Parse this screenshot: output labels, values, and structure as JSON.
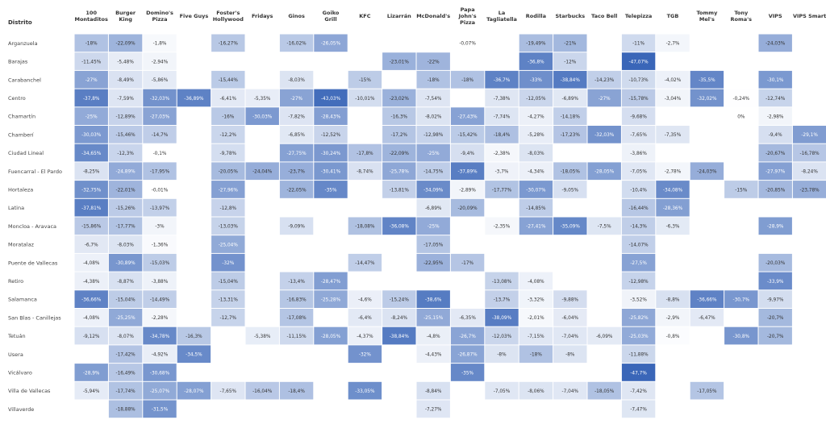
{
  "chart_data": {
    "type": "heatmap",
    "row_header": "Distrito",
    "columns": [
      "100 Montaditos",
      "Burger King",
      "Domino's Pizza",
      "Five Guys",
      "Foster's Hollywood",
      "Fridays",
      "Ginos",
      "Goiko Grill",
      "KFC",
      "Lizarrán",
      "McDonald's",
      "Papa John's Pizza",
      "La Tagliatella",
      "Rodilla",
      "Starbucks",
      "Taco Bell",
      "Telepizza",
      "TGB",
      "Tommy Mel's",
      "Tony Roma's",
      "VIPS",
      "VIPS Smart"
    ],
    "rows": [
      "Arganzuela",
      "Barajas",
      "Carabanchel",
      "Centro",
      "Chamartín",
      "Chamberí",
      "Ciudad Lineal",
      "Fuencarral - El Pardo",
      "Hortaleza",
      "Latina",
      "Moncloa - Aravaca",
      "Moratalaz",
      "Puente de Vallecas",
      "Retiro",
      "Salamanca",
      "San Blas - Canillejas",
      "Tetuán",
      "Usera",
      "Vicálvaro",
      "Villa de Vallecas",
      "Villaverde"
    ],
    "color_scale": {
      "negative": "#3a66b8",
      "neutral": "#ffffff",
      "positive": "#e8454a",
      "max_abs": 45
    },
    "values": [
      [
        -18,
        -22.09,
        -1.8,
        null,
        -16.27,
        null,
        -16.02,
        -26.05,
        null,
        null,
        null,
        -0.07,
        null,
        -19.49,
        -21,
        null,
        -11,
        -2.7,
        null,
        null,
        -24.03,
        null
      ],
      [
        -11.45,
        -5.48,
        -2.94,
        null,
        null,
        null,
        null,
        null,
        null,
        -23.01,
        -22,
        null,
        null,
        -36.8,
        -12,
        null,
        -47.07,
        null,
        null,
        null,
        null,
        null
      ],
      [
        -27,
        -8.49,
        -5.86,
        null,
        -15.44,
        null,
        -8.03,
        null,
        -15,
        null,
        -18,
        -18,
        -36.7,
        -33,
        -38.84,
        -14.23,
        -10.73,
        -4.02,
        -35.5,
        null,
        -30.1,
        null
      ],
      [
        -37.8,
        -7.59,
        -32.03,
        -36.89,
        -6.41,
        -5.35,
        -27,
        -43.03,
        -10.01,
        -23.02,
        -7.54,
        null,
        -7.38,
        -12.05,
        -6.89,
        -27,
        -15.78,
        -3.04,
        -32.02,
        -0.24,
        -12.74,
        null
      ],
      [
        -25,
        -12.89,
        -27.03,
        null,
        -16,
        -30.03,
        -7.82,
        -28.43,
        null,
        -16.3,
        -8.02,
        -27.43,
        -7.74,
        -4.27,
        -14.18,
        null,
        -9.68,
        null,
        null,
        0,
        -2.98,
        null
      ],
      [
        -30.03,
        -15.46,
        -14.7,
        null,
        -12.2,
        null,
        -6.85,
        -12.52,
        null,
        -17.2,
        -12.98,
        -15.42,
        -18.4,
        -5.28,
        -17.23,
        -32.03,
        -7.65,
        -7.35,
        null,
        null,
        -9.4,
        -29.1
      ],
      [
        -34.65,
        -12.3,
        -0.1,
        null,
        -9.78,
        null,
        -27.75,
        -30.24,
        -17.8,
        -22.09,
        -25,
        -9.4,
        -2.38,
        -8.03,
        null,
        null,
        -3.86,
        null,
        null,
        null,
        -20.67,
        -16.78
      ],
      [
        -8.25,
        -24.89,
        -17.95,
        null,
        -20.05,
        -24.04,
        -23.7,
        -30.41,
        -8.74,
        -25.78,
        -14.75,
        -37.89,
        -3.7,
        -4.34,
        -18.05,
        -28.05,
        -7.05,
        -2.78,
        -24.03,
        null,
        -27.97,
        -8.24
      ],
      [
        -32.75,
        -22.01,
        -0.01,
        null,
        -27.96,
        null,
        -22.05,
        -35,
        null,
        -13.81,
        -34.09,
        -2.89,
        -17.77,
        -30.07,
        -9.05,
        null,
        -10.4,
        -34.08,
        null,
        -15,
        -20.85,
        -23.78
      ],
      [
        -37.81,
        -15.26,
        -13.97,
        null,
        -12.8,
        null,
        null,
        null,
        null,
        null,
        -6.89,
        -20.09,
        null,
        -14.85,
        null,
        null,
        -16.44,
        -28.36,
        null,
        null,
        null,
        null
      ],
      [
        -15.86,
        -17.77,
        -3,
        null,
        -13.03,
        null,
        -9.09,
        null,
        -18.08,
        -36.08,
        -25,
        null,
        -2.35,
        -27.41,
        -35.09,
        -7.5,
        -14.3,
        -6.3,
        null,
        null,
        -28.9,
        null
      ],
      [
        -6.7,
        -8.03,
        -1.36,
        null,
        -25.04,
        null,
        null,
        null,
        null,
        null,
        -17.05,
        null,
        null,
        null,
        null,
        null,
        -14.07,
        null,
        null,
        null,
        null,
        null
      ],
      [
        -4.08,
        -30.89,
        -15.03,
        null,
        -32,
        null,
        null,
        null,
        -14.47,
        null,
        -22.95,
        -17,
        null,
        null,
        null,
        null,
        -27.5,
        null,
        null,
        null,
        -20.03,
        null
      ],
      [
        -4.38,
        -8.87,
        -3.88,
        null,
        -15.04,
        null,
        -13.4,
        -28.47,
        null,
        null,
        null,
        null,
        -13.08,
        -4.08,
        null,
        null,
        -12.98,
        null,
        null,
        null,
        -33.9,
        null
      ],
      [
        -36.66,
        -15.04,
        -14.49,
        null,
        -13.31,
        null,
        -16.83,
        -25.28,
        -4.6,
        -15.24,
        -38.6,
        null,
        -13.7,
        -3.32,
        -9.88,
        null,
        -3.52,
        -8.8,
        -36.66,
        -30.7,
        -9.97,
        null
      ],
      [
        -4.08,
        -25.25,
        -2.28,
        null,
        -12.7,
        null,
        -17.08,
        null,
        -6.4,
        -8.24,
        -25.15,
        -6.35,
        -38.09,
        -2.01,
        -6.04,
        null,
        -25.82,
        -2.9,
        -6.47,
        null,
        -20.7,
        null
      ],
      [
        -9.12,
        -8.07,
        -34.78,
        -16.3,
        null,
        -5.38,
        -11.15,
        -28.05,
        -4.37,
        -38.84,
        -4.8,
        -26.7,
        -12.03,
        -7.15,
        -7.04,
        -6.09,
        -25.03,
        -0.8,
        null,
        -30.8,
        -20.7,
        null
      ],
      [
        null,
        -17.42,
        -4.92,
        -34.5,
        null,
        null,
        null,
        null,
        -32,
        null,
        -4.43,
        -26.87,
        -8,
        -18,
        -8,
        null,
        -11.88,
        null,
        null,
        null,
        null,
        null
      ],
      [
        -28.9,
        -16.49,
        -30.68,
        null,
        null,
        null,
        null,
        null,
        null,
        null,
        null,
        -35,
        null,
        null,
        null,
        null,
        -47.7,
        null,
        null,
        null,
        null,
        null
      ],
      [
        -5.94,
        -17.74,
        -25.07,
        -28.07,
        -7.65,
        -16.04,
        -18.4,
        null,
        -33.05,
        null,
        -8.84,
        null,
        -7.05,
        -8.06,
        -7.04,
        -18.05,
        -7.42,
        null,
        -17.05,
        null,
        null,
        null
      ],
      [
        null,
        -18.88,
        -31.5,
        null,
        null,
        null,
        null,
        null,
        null,
        null,
        -7.27,
        null,
        null,
        null,
        null,
        null,
        -7.47,
        null,
        null,
        null,
        null,
        null
      ]
    ]
  }
}
